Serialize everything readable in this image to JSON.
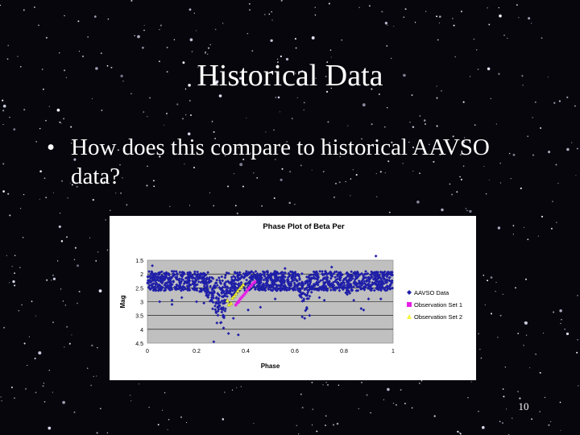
{
  "slide": {
    "title": "Historical Data",
    "bullet": "How does this compare to historical AAVSO data?",
    "page_number": "10"
  },
  "colors": {
    "background": "#06060c",
    "plot_area": "#c0c0c0",
    "aavso": "#1f1fa8",
    "obs1": "#e61ee6",
    "obs2": "#f5f53c"
  },
  "chart_data": {
    "type": "scatter",
    "title": "Phase Plot of Beta Per",
    "xlabel": "Phase",
    "ylabel": "Mag",
    "xlim": [
      0,
      1
    ],
    "ylim": [
      1.5,
      4.5
    ],
    "y_inverted": true,
    "xticks": [
      "0",
      "0.2",
      "0.4",
      "0.6",
      "0.8",
      "1"
    ],
    "yticks": [
      "1.5",
      "2",
      "2.5",
      "3",
      "3.5",
      "4",
      "4.5"
    ],
    "grid": "horizontal",
    "legend_position": "right",
    "series": [
      {
        "name": "AAVSO Data",
        "marker": "diamond",
        "band": {
          "x_start": 0.0,
          "x_end": 1.0,
          "y_low": 1.9,
          "y_high": 2.6,
          "baseline": 2.15
        },
        "dips": [
          {
            "center": 0.29,
            "depth": 1.35
          },
          {
            "center": 0.64,
            "depth": 0.95
          },
          {
            "center": 0.81,
            "depth": 0.2
          }
        ],
        "points": [
          [
            0.37,
            4.2
          ],
          [
            0.33,
            4.15
          ],
          [
            0.27,
            4.45
          ],
          [
            0.41,
            3.3
          ],
          [
            0.23,
            3.05
          ],
          [
            0.1,
            2.95
          ],
          [
            0.1,
            3.1
          ],
          [
            0.05,
            3.0
          ],
          [
            0.46,
            3.2
          ],
          [
            0.87,
            3.25
          ],
          [
            0.63,
            3.55
          ],
          [
            0.64,
            3.6
          ],
          [
            0.66,
            3.5
          ],
          [
            0.14,
            2.85
          ],
          [
            0.95,
            2.9
          ],
          [
            0.7,
            2.85
          ],
          [
            0.52,
            2.9
          ],
          [
            0.3,
            3.75
          ],
          [
            0.31,
            3.95
          ],
          [
            0.28,
            3.4
          ],
          [
            0.35,
            3.6
          ],
          [
            0.2,
            3.0
          ],
          [
            0.88,
            3.3
          ],
          [
            0.72,
            2.95
          ],
          [
            0.84,
            2.95
          ],
          [
            0.93,
            1.35
          ],
          [
            0.02,
            1.7
          ],
          [
            0.56,
            1.8
          ],
          [
            0.75,
            1.75
          ],
          [
            0.9,
            2.9
          ]
        ]
      },
      {
        "name": "Observation Set 1",
        "marker": "square",
        "points": [
          [
            0.365,
            3.05
          ],
          [
            0.372,
            2.98
          ],
          [
            0.378,
            2.9
          ],
          [
            0.384,
            2.84
          ],
          [
            0.39,
            2.78
          ],
          [
            0.396,
            2.72
          ],
          [
            0.402,
            2.65
          ],
          [
            0.408,
            2.58
          ],
          [
            0.414,
            2.5
          ],
          [
            0.42,
            2.44
          ],
          [
            0.426,
            2.38
          ],
          [
            0.432,
            2.32
          ],
          [
            0.438,
            2.28
          ],
          [
            0.36,
            3.12
          ],
          [
            0.37,
            3.02
          ]
        ]
      },
      {
        "name": "Observation Set 2",
        "marker": "triangle",
        "points": [
          [
            0.325,
            2.95
          ],
          [
            0.332,
            3.1
          ],
          [
            0.34,
            3.05
          ],
          [
            0.347,
            2.85
          ],
          [
            0.354,
            2.78
          ],
          [
            0.361,
            2.7
          ],
          [
            0.368,
            2.6
          ],
          [
            0.376,
            2.52
          ],
          [
            0.383,
            2.45
          ],
          [
            0.39,
            2.38
          ]
        ]
      }
    ]
  }
}
